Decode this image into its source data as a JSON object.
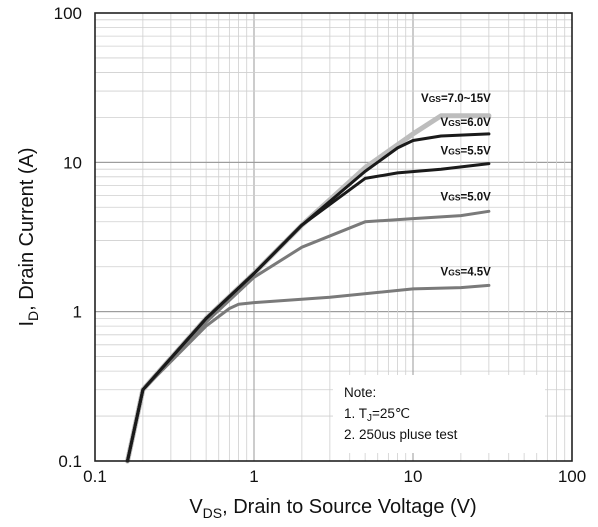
{
  "chart_data": {
    "type": "line",
    "xscale": "log",
    "yscale": "log",
    "xlim": [
      0.1,
      100
    ],
    "ylim": [
      0.1,
      100
    ],
    "xticks": [
      "0.1",
      "1",
      "10",
      "100"
    ],
    "yticks": [
      "0.1",
      "1",
      "10",
      "100"
    ],
    "xlabel": {
      "main": "V",
      "sub": "DS",
      "rest": ", Drain to Source Voltage (V)"
    },
    "ylabel": {
      "main": "I",
      "sub": "D",
      "rest": ", Drain Current (A)"
    },
    "grid": "minor-and-major",
    "colors": {
      "vgs_7_15": "#bdbdbd",
      "vgs_6_0": "#1a1a1a",
      "vgs_5_5": "#1a1a1a",
      "vgs_5_0": "#7a7a7a",
      "vgs_4_5": "#7a7a7a"
    },
    "series": [
      {
        "name": "VGS=7.0~15V",
        "label_main": "V",
        "label_sub": "GS",
        "label_rest": "=7.0~15V",
        "x": [
          0.16,
          0.2,
          0.5,
          1,
          2,
          5,
          10,
          15,
          30
        ],
        "y": [
          0.1,
          0.3,
          0.9,
          1.8,
          3.8,
          9.2,
          15.5,
          20.5,
          20.5
        ]
      },
      {
        "name": "VGS=6.0V",
        "label_main": "V",
        "label_sub": "GS",
        "label_rest": "=6.0V",
        "x": [
          0.16,
          0.2,
          0.5,
          1,
          2,
          5,
          8,
          10,
          15,
          30
        ],
        "y": [
          0.1,
          0.3,
          0.9,
          1.8,
          3.8,
          8.7,
          12.5,
          14,
          15,
          15.5
        ]
      },
      {
        "name": "VGS=5.5V",
        "label_main": "V",
        "label_sub": "GS",
        "label_rest": "=5.5V",
        "x": [
          0.16,
          0.2,
          0.5,
          1,
          2,
          5,
          8,
          15,
          30
        ],
        "y": [
          0.1,
          0.3,
          0.9,
          1.8,
          3.8,
          7.8,
          8.5,
          9.0,
          9.8
        ]
      },
      {
        "name": "VGS=5.0V",
        "label_main": "V",
        "label_sub": "GS",
        "label_rest": "=5.0V",
        "x": [
          0.16,
          0.2,
          0.5,
          1,
          2,
          5,
          10,
          20,
          30
        ],
        "y": [
          0.1,
          0.3,
          0.85,
          1.7,
          2.7,
          4.0,
          4.2,
          4.4,
          4.7
        ]
      },
      {
        "name": "VGS=4.5V",
        "label_main": "V",
        "label_sub": "GS",
        "label_rest": "=4.5V",
        "x": [
          0.16,
          0.2,
          0.5,
          0.7,
          0.8,
          1,
          3,
          10,
          20,
          30
        ],
        "y": [
          0.1,
          0.3,
          0.8,
          1.05,
          1.12,
          1.15,
          1.25,
          1.42,
          1.45,
          1.5
        ]
      }
    ],
    "note": {
      "title": "Note:",
      "line1_prefix": "1. T",
      "line1_sub": "J",
      "line1_rest": "=25℃",
      "line2": "2. 250us pluse test"
    }
  }
}
